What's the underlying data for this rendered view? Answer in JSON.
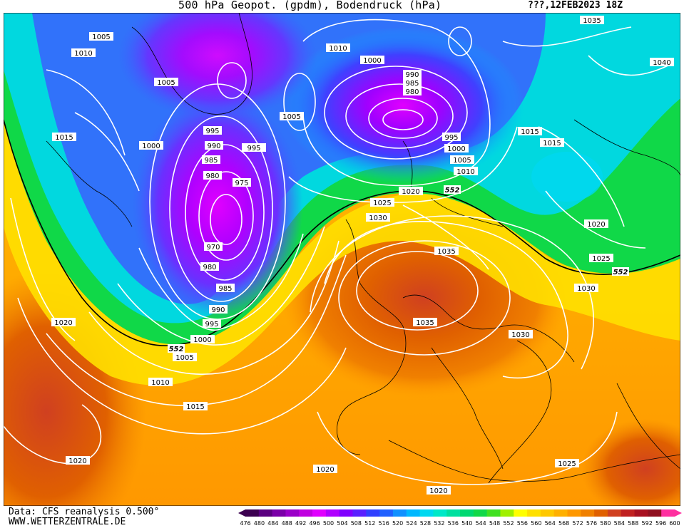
{
  "header": {
    "title": "500 hPa Geopot. (gpdm), Bodendruck (hPa)",
    "date": "???,12FEB2023 18Z"
  },
  "footer": {
    "source": "Data: CFS reanalysis 0.500°",
    "website": "WWW.WETTERZENTRALE.DE"
  },
  "legend": {
    "values": [
      "476",
      "480",
      "484",
      "488",
      "492",
      "496",
      "500",
      "504",
      "508",
      "512",
      "516",
      "520",
      "524",
      "528",
      "532",
      "536",
      "540",
      "544",
      "548",
      "552",
      "556",
      "560",
      "564",
      "568",
      "572",
      "576",
      "580",
      "584",
      "588",
      "592",
      "596",
      "600"
    ],
    "colors": [
      "#3b0050",
      "#5a0080",
      "#7a00a8",
      "#9a00c8",
      "#c000e0",
      "#e000ff",
      "#b000ff",
      "#8000ff",
      "#5a20ff",
      "#3040ff",
      "#2060ff",
      "#1090ff",
      "#00b8ff",
      "#00d8f0",
      "#00e8c8",
      "#00e0a0",
      "#00d870",
      "#10d848",
      "#40e020",
      "#a0f000",
      "#ffff00",
      "#ffe000",
      "#ffc800",
      "#ffb000",
      "#ff9800",
      "#f08000",
      "#e06000",
      "#d04020",
      "#c02020",
      "#a81020",
      "#901020",
      "#ff30a0"
    ]
  },
  "map": {
    "reference_contour": "552",
    "pressure_labels": [
      "1005",
      "1010",
      "1015",
      "1020",
      "1005",
      "1000",
      "995",
      "990",
      "985",
      "980",
      "975",
      "970",
      "980",
      "985",
      "990",
      "995",
      "1000",
      "1005",
      "1010",
      "1015",
      "1020",
      "1010",
      "1000",
      "990",
      "985",
      "980",
      "995",
      "1000",
      "1005",
      "1010",
      "1020",
      "1025",
      "1030",
      "1035",
      "1035",
      "1030",
      "1030",
      "1025",
      "1025",
      "1020",
      "1020",
      "1015",
      "1015",
      "1035",
      "1040",
      "1020",
      "1005",
      "995"
    ]
  }
}
